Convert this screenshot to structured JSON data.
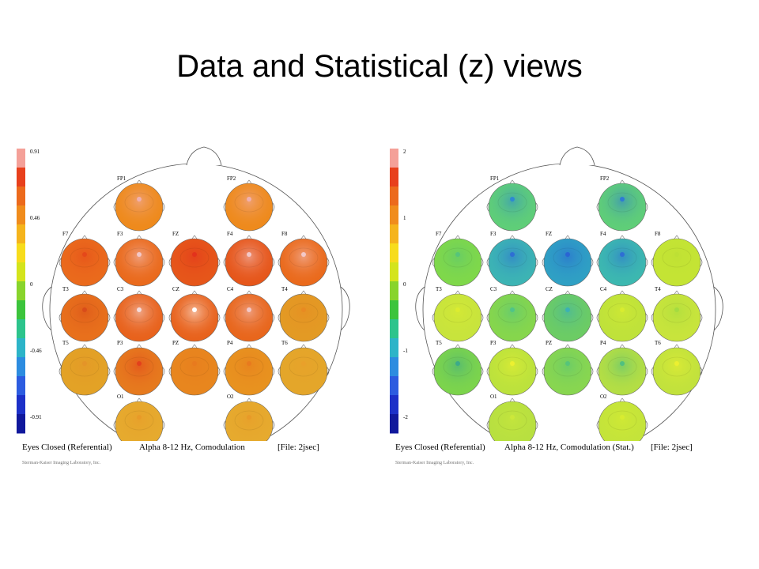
{
  "slide": {
    "title": "Data and Statistical (z) views"
  },
  "panels": [
    {
      "id": "left",
      "scale": {
        "ticks": [
          "0.91",
          "0.46",
          "0",
          "-0.46",
          "-0.91"
        ]
      },
      "caption": {
        "condition": "Eyes Closed (Referential)",
        "band": "Alpha 8-12 Hz, Comodulation",
        "file": "[File:  2jsec]"
      },
      "credit": "Sterman-Kaiser Imaging Laboratory, Inc.",
      "electrodes": [
        "FP1",
        "FP2",
        "F7",
        "F3",
        "FZ",
        "F4",
        "F8",
        "T3",
        "C3",
        "CZ",
        "C4",
        "T4",
        "T5",
        "P3",
        "PZ",
        "P4",
        "T6",
        "O1",
        "O2"
      ],
      "head_colors": {
        "FP1": "#ee8a1c",
        "FP2": "#ee8a1c",
        "F7": "#ea6a1c",
        "F3": "#ea6a1c",
        "FZ": "#e6561a",
        "F4": "#e6561a",
        "F8": "#ea6a1c",
        "T3": "#e8701c",
        "C3": "#e8621c",
        "CZ": "#e8621c",
        "C4": "#e8661c",
        "T4": "#e39a24",
        "T5": "#e3a226",
        "P3": "#e67a1e",
        "PZ": "#e8861e",
        "P4": "#e8921f",
        "T6": "#e4a62a",
        "O1": "#e6aa2e",
        "O2": "#e6aa2e"
      },
      "spot_colors": {
        "FP1": "#f1b0b0",
        "FP2": "#f1b0b0",
        "F7": "#e5481a",
        "F3": "#f3c8c8",
        "FZ": "#e3321c",
        "F4": "#f3c8c8",
        "F8": "#f3c8c8",
        "T3": "#d84c1a",
        "C3": "#f5dcdc",
        "CZ": "#ffffff",
        "C4": "#f3c8c8",
        "T4": "#e88a22",
        "T5": "#e49428",
        "P3": "#e3401c",
        "PZ": "#e87a1e",
        "P4": "#e87a1e",
        "T6": "#e9a02a",
        "O1": "#e89a28",
        "O2": "#e89a28"
      }
    },
    {
      "id": "right",
      "scale": {
        "ticks": [
          "2",
          "1",
          "0",
          "-1",
          "-2"
        ]
      },
      "caption": {
        "condition": "Eyes Closed (Referential)",
        "band": "Alpha 8-12 Hz, Comodulation (Stat.)",
        "file": "[File:  2jsec]"
      },
      "credit": "Sterman-Kaiser Imaging Laboratory, Inc.",
      "electrodes": [
        "FP1",
        "FP2",
        "F7",
        "F3",
        "FZ",
        "F4",
        "F8",
        "T3",
        "C3",
        "CZ",
        "C4",
        "T4",
        "T5",
        "P3",
        "PZ",
        "P4",
        "T6",
        "O1",
        "O2"
      ],
      "head_colors": {
        "FP1": "#5fce78",
        "FP2": "#5fce78",
        "F7": "#7fd84a",
        "F3": "#3cb4b4",
        "FZ": "#2fa0c4",
        "F4": "#3cb8b0",
        "F8": "#c4e434",
        "T3": "#c8e43c",
        "C3": "#86d64c",
        "CZ": "#6ccc64",
        "C4": "#bfe23a",
        "T4": "#c8e43c",
        "T5": "#7cd44c",
        "P3": "#bce23c",
        "PZ": "#88d650",
        "P4": "#b4de44",
        "T6": "#c2e23c",
        "O1": "#b8e040",
        "O2": "#c4e43a"
      },
      "spot_colors": {
        "FP1": "#2e88d2",
        "FP2": "#2e7ad4",
        "F7": "#56c47a",
        "F3": "#2e6ed4",
        "FZ": "#2a64d4",
        "F4": "#2e6ed4",
        "F8": "#bde034",
        "T3": "#dcec30",
        "C3": "#50c488",
        "CZ": "#3cb0b4",
        "C4": "#d8ec30",
        "T4": "#a4dc40",
        "T5": "#3caa8a",
        "P3": "#ecf030",
        "PZ": "#56c47a",
        "P4": "#50c080",
        "T6": "#ecf030",
        "O1": "#cce83a",
        "O2": "#d8ec30"
      }
    }
  ]
}
